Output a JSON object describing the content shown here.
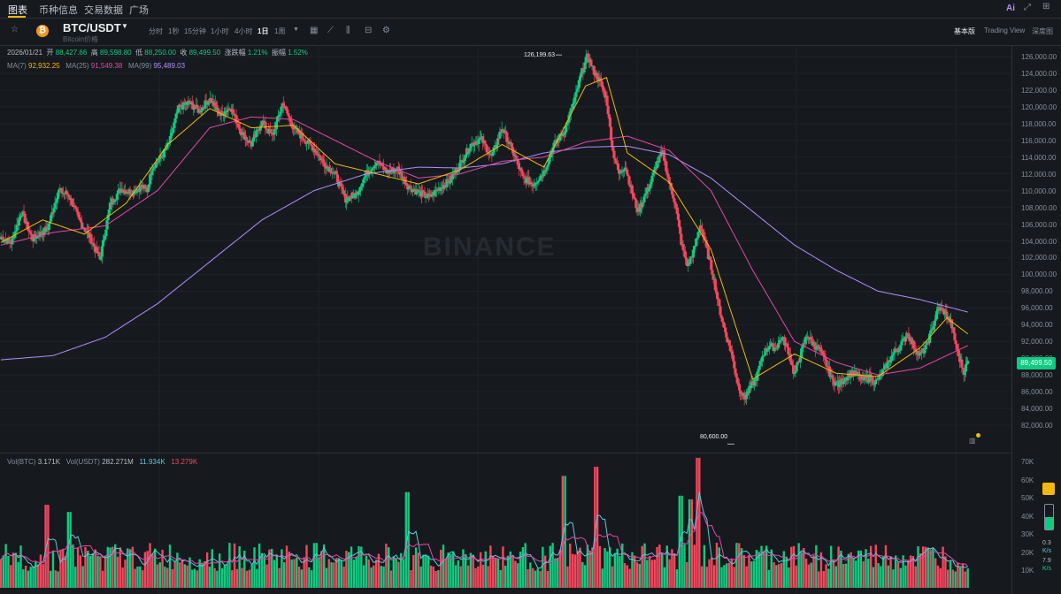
{
  "nav": {
    "tabs": [
      "图表",
      "币种信息",
      "交易数据",
      "广场"
    ]
  },
  "header": {
    "pair": "BTC/USDT",
    "subtitle": "Bitcoin价格",
    "coin_symbol": "₿"
  },
  "intervals": [
    "分时",
    "1秒",
    "15分钟",
    "1小时",
    "4小时",
    "1日",
    "1周"
  ],
  "selected_interval": "1日",
  "view_tabs": [
    "基本版",
    "Trading View",
    "深度图"
  ],
  "ohlc": {
    "date": "2026/01/21",
    "open_label": "开",
    "open": "88,427.66",
    "high_label": "高",
    "high": "89,598.80",
    "low_label": "低",
    "low": "88,250.00",
    "close_label": "收",
    "close": "89,499.50",
    "change_label": "涨跌幅",
    "change": "1.21%",
    "amp_label": "振幅",
    "amp": "1.52%"
  },
  "ma": {
    "ma7_label": "MA(7)",
    "ma7": "92,932.25",
    "ma25_label": "MA(25)",
    "ma25": "91,549.38",
    "ma99_label": "MA(99)",
    "ma99": "95,489.03"
  },
  "vol": {
    "btc_label": "Vol(BTC)",
    "btc": "3.171K",
    "usdt_label": "Vol(USDT)",
    "usdt": "282.271M",
    "v1": "11.934K",
    "v2": "13.279K"
  },
  "price_tag": "89,499.50",
  "high_marker": "126,199.63",
  "low_marker": "80,600.00",
  "watermark": "BINANCE",
  "side": {
    "a": "0.3",
    "b": "K/s",
    "c": "7.9",
    "d": "K/s"
  },
  "colors": {
    "up": "#0ecb81",
    "down": "#f6465d",
    "ma7": "#f0b90b",
    "ma25": "#e447a9",
    "ma99": "#b28dff",
    "bg": "#161a1e"
  },
  "chart_data": {
    "type": "candlestick",
    "price_axis_ticks": [
      "126,000.00",
      "124,000.00",
      "122,000.00",
      "120,000.00",
      "118,000.00",
      "116,000.00",
      "114,000.00",
      "112,000.00",
      "110,000.00",
      "108,000.00",
      "106,000.00",
      "104,000.00",
      "102,000.00",
      "100,000.00",
      "98,000.00",
      "96,000.00",
      "94,000.00",
      "92,000.00",
      "90,000.00",
      "88,000.00",
      "86,000.00",
      "84,000.00",
      "82,000.00"
    ],
    "volume_axis_ticks": [
      "70K",
      "60K",
      "50K",
      "40K",
      "30K",
      "20K",
      "10K"
    ],
    "close_keypoints": [
      [
        0,
        104500
      ],
      [
        10,
        103800
      ],
      [
        20,
        107500
      ],
      [
        30,
        104200
      ],
      [
        45,
        105500
      ],
      [
        55,
        110000
      ],
      [
        65,
        109500
      ],
      [
        75,
        106500
      ],
      [
        85,
        104500
      ],
      [
        95,
        101800
      ],
      [
        105,
        108500
      ],
      [
        115,
        110200
      ],
      [
        125,
        109800
      ],
      [
        135,
        110500
      ],
      [
        140,
        110000
      ],
      [
        145,
        112800
      ],
      [
        155,
        114200
      ],
      [
        162,
        116000
      ],
      [
        170,
        119800
      ],
      [
        180,
        120500
      ],
      [
        190,
        119500
      ],
      [
        200,
        121000
      ],
      [
        210,
        119000
      ],
      [
        220,
        120000
      ],
      [
        230,
        117000
      ],
      [
        240,
        115500
      ],
      [
        250,
        118200
      ],
      [
        260,
        116500
      ],
      [
        270,
        120500
      ],
      [
        280,
        117500
      ],
      [
        290,
        116200
      ],
      [
        300,
        115000
      ],
      [
        310,
        113200
      ],
      [
        320,
        112000
      ],
      [
        330,
        109000
      ],
      [
        340,
        109500
      ],
      [
        350,
        112000
      ],
      [
        360,
        113500
      ],
      [
        370,
        112200
      ],
      [
        380,
        112600
      ],
      [
        390,
        110500
      ],
      [
        400,
        109800
      ],
      [
        410,
        109200
      ],
      [
        420,
        110300
      ],
      [
        430,
        111200
      ],
      [
        440,
        113200
      ],
      [
        450,
        115500
      ],
      [
        460,
        116200
      ],
      [
        470,
        114000
      ],
      [
        480,
        117500
      ],
      [
        490,
        114800
      ],
      [
        500,
        111500
      ],
      [
        510,
        110800
      ],
      [
        520,
        112200
      ],
      [
        530,
        115500
      ],
      [
        540,
        117200
      ],
      [
        550,
        121000
      ],
      [
        556,
        124000
      ],
      [
        562,
        126100
      ],
      [
        568,
        124200
      ],
      [
        574,
        123000
      ],
      [
        580,
        121000
      ],
      [
        586,
        114800
      ],
      [
        592,
        112000
      ],
      [
        598,
        113000
      ],
      [
        604,
        110000
      ],
      [
        610,
        107500
      ],
      [
        616,
        109200
      ],
      [
        622,
        110800
      ],
      [
        628,
        113200
      ],
      [
        634,
        114600
      ],
      [
        640,
        111000
      ],
      [
        646,
        108500
      ],
      [
        652,
        103500
      ],
      [
        658,
        101000
      ],
      [
        664,
        103000
      ],
      [
        670,
        106000
      ],
      [
        676,
        103000
      ],
      [
        682,
        100000
      ],
      [
        688,
        96000
      ],
      [
        694,
        93000
      ],
      [
        700,
        90500
      ],
      [
        706,
        86800
      ],
      [
        712,
        85200
      ],
      [
        718,
        86500
      ],
      [
        724,
        87800
      ],
      [
        730,
        90500
      ],
      [
        736,
        91500
      ],
      [
        742,
        91200
      ],
      [
        748,
        92500
      ],
      [
        754,
        91000
      ],
      [
        760,
        88000
      ],
      [
        766,
        90500
      ],
      [
        772,
        92800
      ],
      [
        778,
        91700
      ],
      [
        784,
        91000
      ],
      [
        790,
        89500
      ],
      [
        796,
        87400
      ],
      [
        802,
        86800
      ],
      [
        808,
        87600
      ],
      [
        814,
        88200
      ],
      [
        820,
        88000
      ],
      [
        826,
        87400
      ],
      [
        832,
        87700
      ],
      [
        838,
        87100
      ],
      [
        844,
        88200
      ],
      [
        850,
        89500
      ],
      [
        856,
        90800
      ],
      [
        862,
        91500
      ],
      [
        868,
        93000
      ],
      [
        874,
        91500
      ],
      [
        880,
        90300
      ],
      [
        886,
        91300
      ],
      [
        892,
        93500
      ],
      [
        898,
        96000
      ],
      [
        904,
        95500
      ],
      [
        910,
        94200
      ],
      [
        916,
        90800
      ],
      [
        922,
        88400
      ],
      [
        926,
        89500
      ]
    ],
    "ma7": [
      [
        0,
        103800
      ],
      [
        40,
        106500
      ],
      [
        80,
        104800
      ],
      [
        120,
        108500
      ],
      [
        160,
        115500
      ],
      [
        200,
        119800
      ],
      [
        240,
        117500
      ],
      [
        280,
        117800
      ],
      [
        320,
        113200
      ],
      [
        360,
        112000
      ],
      [
        400,
        110800
      ],
      [
        440,
        112500
      ],
      [
        480,
        115500
      ],
      [
        520,
        112800
      ],
      [
        560,
        122500
      ],
      [
        580,
        123500
      ],
      [
        600,
        114500
      ],
      [
        640,
        111000
      ],
      [
        680,
        103000
      ],
      [
        720,
        87500
      ],
      [
        760,
        90500
      ],
      [
        800,
        88200
      ],
      [
        840,
        87800
      ],
      [
        880,
        91200
      ],
      [
        906,
        94800
      ],
      [
        926,
        92900
      ]
    ],
    "ma25": [
      [
        0,
        103500
      ],
      [
        50,
        105000
      ],
      [
        100,
        105800
      ],
      [
        150,
        110000
      ],
      [
        200,
        117500
      ],
      [
        240,
        118800
      ],
      [
        280,
        118500
      ],
      [
        320,
        116000
      ],
      [
        360,
        113500
      ],
      [
        400,
        111500
      ],
      [
        440,
        112000
      ],
      [
        480,
        113500
      ],
      [
        520,
        114000
      ],
      [
        560,
        115800
      ],
      [
        600,
        116500
      ],
      [
        640,
        114800
      ],
      [
        680,
        110000
      ],
      [
        720,
        100500
      ],
      [
        760,
        92000
      ],
      [
        800,
        89500
      ],
      [
        840,
        88000
      ],
      [
        880,
        88800
      ],
      [
        926,
        91500
      ]
    ],
    "ma99": [
      [
        0,
        89800
      ],
      [
        50,
        90300
      ],
      [
        100,
        92500
      ],
      [
        150,
        96500
      ],
      [
        200,
        101500
      ],
      [
        250,
        106500
      ],
      [
        300,
        110000
      ],
      [
        350,
        112000
      ],
      [
        400,
        112800
      ],
      [
        440,
        112700
      ],
      [
        480,
        113200
      ],
      [
        520,
        114500
      ],
      [
        560,
        115200
      ],
      [
        600,
        115300
      ],
      [
        640,
        114300
      ],
      [
        680,
        111500
      ],
      [
        720,
        107500
      ],
      [
        760,
        103500
      ],
      [
        800,
        100500
      ],
      [
        840,
        98000
      ],
      [
        880,
        97000
      ],
      [
        926,
        95500
      ]
    ],
    "volume_peaks": [
      [
        45,
        46000
      ],
      [
        65,
        42000
      ],
      [
        390,
        53000
      ],
      [
        540,
        62000
      ],
      [
        570,
        67000
      ],
      [
        668,
        72000
      ],
      [
        650,
        51000
      ],
      [
        660,
        49000
      ]
    ],
    "price_range": [
      80000,
      127500
    ]
  }
}
